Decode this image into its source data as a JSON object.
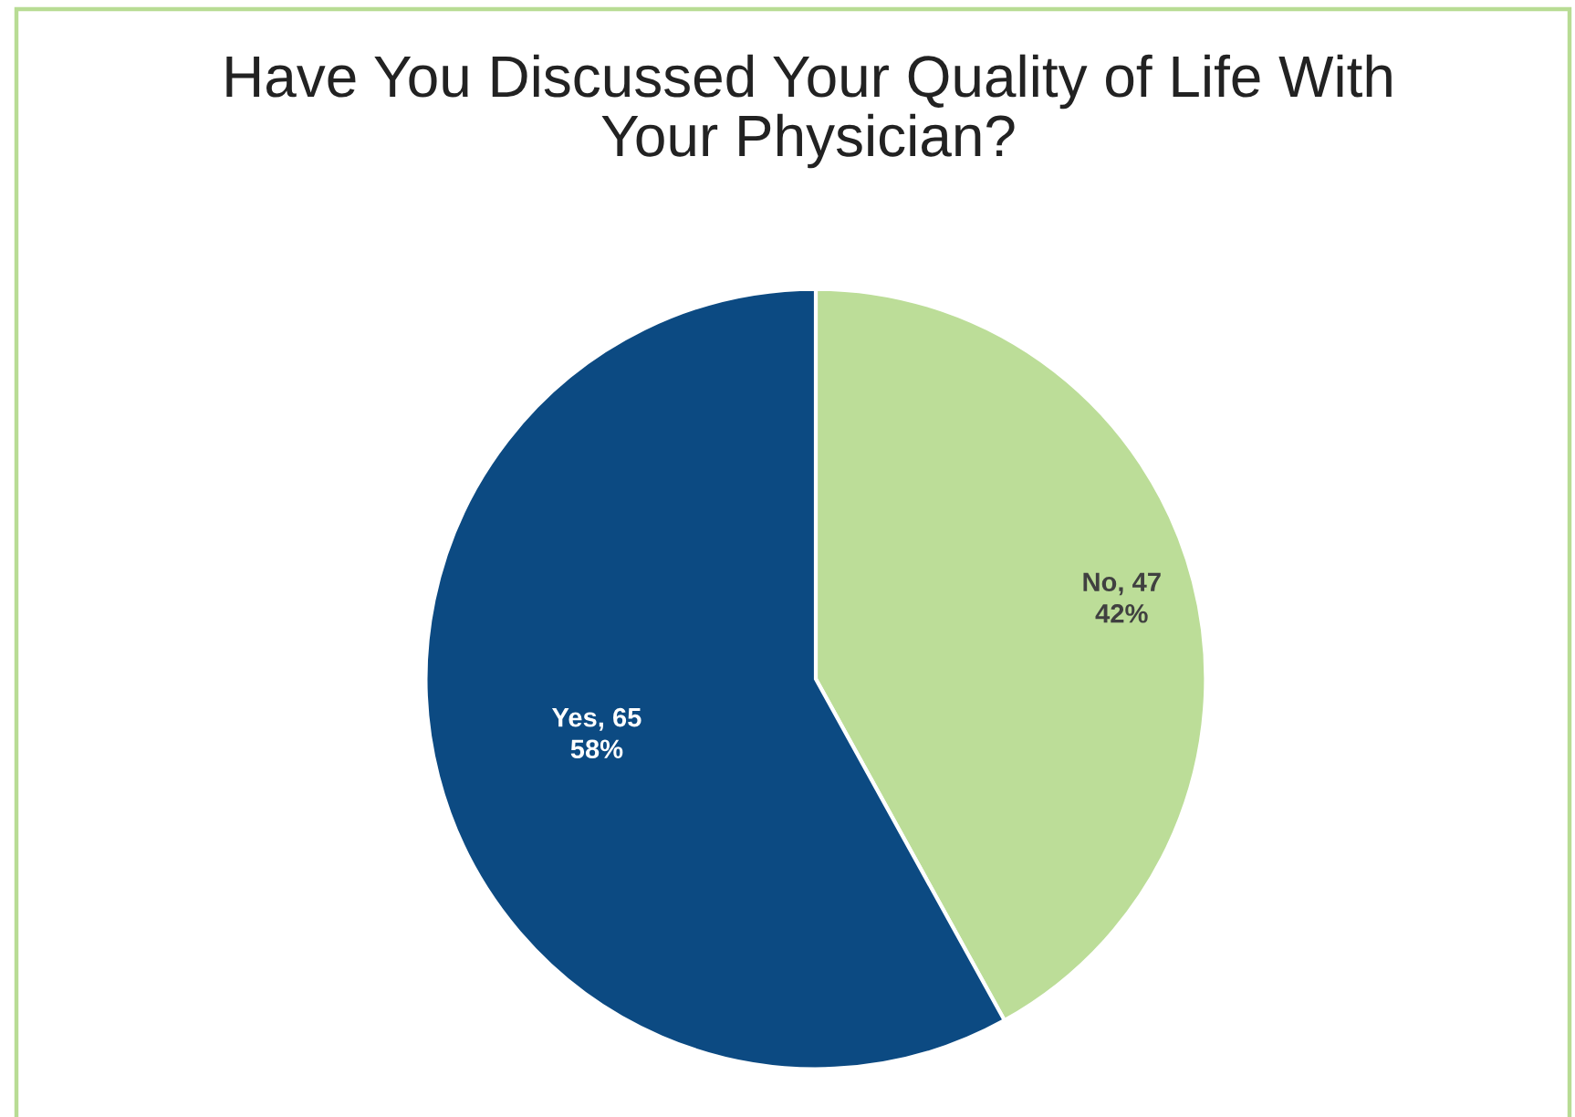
{
  "chart_data": {
    "type": "pie",
    "title": "Have You Discussed Your Quality of Life With\nYour Physician?",
    "categories": [
      "No",
      "Yes"
    ],
    "values": [
      47,
      65
    ],
    "colors": [
      "#bcdd98",
      "#0c4a82"
    ],
    "value_labels": [
      "47\n42%",
      "65\n58%"
    ],
    "legend": false
  }
}
